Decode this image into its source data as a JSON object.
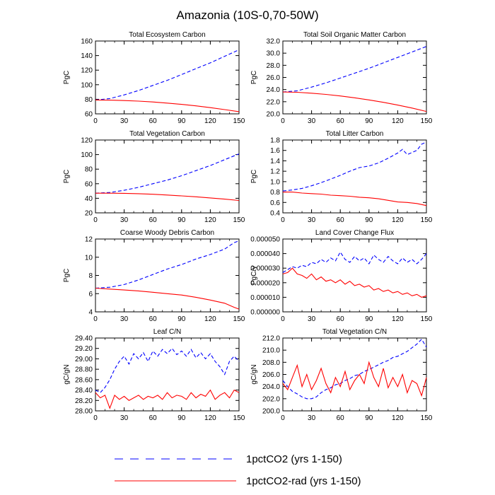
{
  "figure": {
    "title": "Amazonia (10S-0,70-50W)"
  },
  "legend": [
    {
      "name": "1pctCO2 (yrs 1-150)",
      "color": "#0000ff",
      "dash": "dashed"
    },
    {
      "name": "1pctCO2-rad (yrs 1-150)",
      "color": "#ff0000",
      "dash": "solid"
    }
  ],
  "chart_data": [
    {
      "type": "line",
      "title": "Total Ecosystem Carbon",
      "ylabel": "PgC",
      "xlim": [
        0,
        150
      ],
      "ylim": [
        60,
        160
      ],
      "xticks": [
        0,
        30,
        60,
        90,
        120,
        150
      ],
      "xtick_labels": [
        "0",
        "30",
        "60",
        "90",
        "120",
        "150"
      ],
      "yticks": [
        60,
        80,
        100,
        120,
        140,
        160
      ],
      "ytick_labels": [
        "60",
        "80",
        "100",
        "120",
        "140",
        "160"
      ],
      "series": [
        {
          "name": "1pctCO2 (yrs 1-150)",
          "color": "#0000ff",
          "dash": "dashed",
          "x": [
            0,
            15,
            30,
            45,
            60,
            75,
            90,
            105,
            120,
            135,
            150
          ],
          "y": [
            79,
            81,
            86,
            92,
            99,
            106,
            114,
            122,
            130,
            139,
            148
          ]
        },
        {
          "name": "1pctCO2-rad (yrs 1-150)",
          "color": "#ff0000",
          "dash": "solid",
          "x": [
            0,
            15,
            30,
            45,
            60,
            75,
            90,
            105,
            120,
            135,
            150
          ],
          "y": [
            79,
            78.8,
            78.3,
            77.5,
            76.3,
            74.8,
            73,
            71,
            68.5,
            65.8,
            63
          ]
        }
      ]
    },
    {
      "type": "line",
      "title": "Total Soil Organic Matter Carbon",
      "ylabel": "PgC",
      "xlim": [
        0,
        150
      ],
      "ylim": [
        20,
        32
      ],
      "xticks": [
        0,
        30,
        60,
        90,
        120,
        150
      ],
      "xtick_labels": [
        "0",
        "30",
        "60",
        "90",
        "120",
        "150"
      ],
      "yticks": [
        20,
        22,
        24,
        26,
        28,
        30,
        32
      ],
      "ytick_labels": [
        "20.0",
        "22.0",
        "24.0",
        "26.0",
        "28.0",
        "30.0",
        "32.0"
      ],
      "series": [
        {
          "name": "1pctCO2 (yrs 1-150)",
          "color": "#0000ff",
          "dash": "dashed",
          "x": [
            0,
            15,
            30,
            45,
            60,
            75,
            90,
            105,
            120,
            135,
            150
          ],
          "y": [
            23.6,
            23.8,
            24.4,
            25.1,
            25.9,
            26.7,
            27.5,
            28.4,
            29.3,
            30.2,
            31.1
          ]
        },
        {
          "name": "1pctCO2-rad (yrs 1-150)",
          "color": "#ff0000",
          "dash": "solid",
          "x": [
            0,
            15,
            30,
            45,
            60,
            75,
            90,
            105,
            120,
            135,
            150
          ],
          "y": [
            23.6,
            23.55,
            23.4,
            23.2,
            22.95,
            22.65,
            22.3,
            21.9,
            21.45,
            20.95,
            20.4
          ]
        }
      ]
    },
    {
      "type": "line",
      "title": "Total Vegetation Carbon",
      "ylabel": "PgC",
      "xlim": [
        0,
        150
      ],
      "ylim": [
        20,
        120
      ],
      "xticks": [
        0,
        30,
        60,
        90,
        120,
        150
      ],
      "xtick_labels": [
        "0",
        "30",
        "60",
        "90",
        "120",
        "150"
      ],
      "yticks": [
        20,
        40,
        60,
        80,
        100,
        120
      ],
      "ytick_labels": [
        "20",
        "40",
        "60",
        "80",
        "100",
        "120"
      ],
      "series": [
        {
          "name": "1pctCO2 (yrs 1-150)",
          "color": "#0000ff",
          "dash": "dashed",
          "x": [
            0,
            15,
            30,
            45,
            60,
            75,
            90,
            105,
            120,
            135,
            150
          ],
          "y": [
            47,
            48,
            51,
            55,
            60,
            65,
            71,
            78,
            85,
            93,
            101
          ]
        },
        {
          "name": "1pctCO2-rad (yrs 1-150)",
          "color": "#ff0000",
          "dash": "solid",
          "x": [
            0,
            15,
            30,
            45,
            60,
            75,
            90,
            105,
            120,
            135,
            150
          ],
          "y": [
            47,
            47,
            46.8,
            46.3,
            45.5,
            44.5,
            43.3,
            42,
            40.5,
            38.8,
            37
          ]
        }
      ]
    },
    {
      "type": "line",
      "title": "Total Litter Carbon",
      "ylabel": "PgC",
      "xlim": [
        0,
        150
      ],
      "ylim": [
        0.4,
        1.8
      ],
      "xticks": [
        0,
        30,
        60,
        90,
        120,
        150
      ],
      "xtick_labels": [
        "0",
        "30",
        "60",
        "90",
        "120",
        "150"
      ],
      "yticks": [
        0.4,
        0.6,
        0.8,
        1.0,
        1.2,
        1.4,
        1.6,
        1.8
      ],
      "ytick_labels": [
        "0.4",
        "0.6",
        "0.8",
        "1.0",
        "1.2",
        "1.4",
        "1.6",
        "1.8"
      ],
      "series": [
        {
          "name": "1pctCO2 (yrs 1-150)",
          "color": "#0000ff",
          "dash": "dashed",
          "x": [
            0,
            10,
            20,
            30,
            40,
            50,
            60,
            70,
            80,
            90,
            100,
            110,
            120,
            125,
            130,
            140,
            145,
            150
          ],
          "y": [
            0.82,
            0.84,
            0.87,
            0.92,
            0.98,
            1.05,
            1.12,
            1.2,
            1.27,
            1.3,
            1.36,
            1.45,
            1.55,
            1.62,
            1.52,
            1.6,
            1.72,
            1.76
          ]
        },
        {
          "name": "1pctCO2-rad (yrs 1-150)",
          "color": "#ff0000",
          "dash": "solid",
          "x": [
            0,
            10,
            20,
            30,
            40,
            50,
            60,
            70,
            80,
            90,
            100,
            110,
            120,
            130,
            140,
            150
          ],
          "y": [
            0.8,
            0.8,
            0.78,
            0.77,
            0.76,
            0.74,
            0.73,
            0.72,
            0.7,
            0.69,
            0.67,
            0.64,
            0.61,
            0.6,
            0.58,
            0.54
          ]
        }
      ]
    },
    {
      "type": "line",
      "title": "Coarse Woody Debris Carbon",
      "ylabel": "PgC",
      "xlim": [
        0,
        150
      ],
      "ylim": [
        4,
        12
      ],
      "xticks": [
        0,
        30,
        60,
        90,
        120,
        150
      ],
      "xtick_labels": [
        "0",
        "30",
        "60",
        "90",
        "120",
        "150"
      ],
      "yticks": [
        4,
        6,
        8,
        10,
        12
      ],
      "ytick_labels": [
        "4",
        "6",
        "8",
        "10",
        "12"
      ],
      "series": [
        {
          "name": "1pctCO2 (yrs 1-150)",
          "color": "#0000ff",
          "dash": "dashed",
          "x": [
            0,
            15,
            30,
            45,
            60,
            75,
            90,
            105,
            120,
            135,
            145,
            150
          ],
          "y": [
            6.6,
            6.7,
            7.0,
            7.5,
            8.1,
            8.7,
            9.2,
            9.8,
            10.3,
            10.9,
            11.6,
            11.8
          ]
        },
        {
          "name": "1pctCO2-rad (yrs 1-150)",
          "color": "#ff0000",
          "dash": "solid",
          "x": [
            0,
            15,
            30,
            45,
            60,
            75,
            90,
            105,
            120,
            135,
            145,
            150
          ],
          "y": [
            6.6,
            6.5,
            6.4,
            6.3,
            6.15,
            6.0,
            5.85,
            5.6,
            5.3,
            4.95,
            4.5,
            4.3
          ]
        }
      ]
    },
    {
      "type": "line",
      "title": "Land Cover Change Flux",
      "ylabel": "PgC/y",
      "xlim": [
        0,
        150
      ],
      "ylim": [
        0,
        5e-05
      ],
      "xticks": [
        0,
        30,
        60,
        90,
        120,
        150
      ],
      "xtick_labels": [
        "0",
        "30",
        "60",
        "90",
        "120",
        "150"
      ],
      "yticks": [
        0,
        1e-05,
        2e-05,
        3e-05,
        4e-05,
        5e-05
      ],
      "ytick_labels": [
        "0.000000",
        "0.000010",
        "0.000020",
        "0.000030",
        "0.000040",
        "0.000050"
      ],
      "series": [
        {
          "name": "1pctCO2 (yrs 1-150)",
          "color": "#0000ff",
          "dash": "dashed",
          "x": [
            0,
            5,
            10,
            15,
            20,
            25,
            30,
            35,
            40,
            45,
            50,
            55,
            60,
            65,
            70,
            75,
            80,
            85,
            90,
            95,
            100,
            105,
            110,
            115,
            120,
            125,
            130,
            135,
            140,
            145,
            150
          ],
          "y": [
            2.7e-05,
            2.9e-05,
            3.1e-05,
            3e-05,
            3.2e-05,
            3.1e-05,
            3.4e-05,
            3.3e-05,
            3.6e-05,
            3.4e-05,
            3.7e-05,
            3.5e-05,
            4.1e-05,
            3.6e-05,
            3.4e-05,
            3.8e-05,
            3.5e-05,
            3.7e-05,
            3.3e-05,
            3.9e-05,
            3.6e-05,
            3.4e-05,
            3.8e-05,
            3.5e-05,
            3.3e-05,
            3.7e-05,
            3.4e-05,
            3.6e-05,
            3.3e-05,
            3.6e-05,
            4e-05
          ]
        },
        {
          "name": "1pctCO2-rad (yrs 1-150)",
          "color": "#ff0000",
          "dash": "solid",
          "x": [
            0,
            5,
            10,
            15,
            20,
            25,
            30,
            35,
            40,
            45,
            50,
            55,
            60,
            65,
            70,
            75,
            80,
            85,
            90,
            95,
            100,
            105,
            110,
            115,
            120,
            125,
            130,
            135,
            140,
            145,
            150
          ],
          "y": [
            2.6e-05,
            2.7e-05,
            3e-05,
            2.6e-05,
            2.5e-05,
            2.3e-05,
            2.6e-05,
            2.2e-05,
            2.4e-05,
            2.1e-05,
            2.2e-05,
            2e-05,
            2.2e-05,
            1.9e-05,
            2.1e-05,
            1.8e-05,
            1.9e-05,
            1.7e-05,
            1.8e-05,
            1.5e-05,
            1.6e-05,
            1.4e-05,
            1.5e-05,
            1.3e-05,
            1.4e-05,
            1.2e-05,
            1.3e-05,
            1.1e-05,
            1.2e-05,
            1e-05,
            1.1e-05
          ]
        }
      ]
    },
    {
      "type": "line",
      "title": "Leaf C/N",
      "ylabel": "gC/gN",
      "xlim": [
        0,
        150
      ],
      "ylim": [
        28.0,
        29.4
      ],
      "xticks": [
        0,
        30,
        60,
        90,
        120,
        150
      ],
      "xtick_labels": [
        "0",
        "30",
        "60",
        "90",
        "120",
        "150"
      ],
      "yticks": [
        28.0,
        28.2,
        28.4,
        28.6,
        28.8,
        29.0,
        29.2,
        29.4
      ],
      "ytick_labels": [
        "28.00",
        "28.20",
        "28.40",
        "28.60",
        "28.80",
        "29.00",
        "29.20",
        "29.40"
      ],
      "series": [
        {
          "name": "1pctCO2 (yrs 1-150)",
          "color": "#0000ff",
          "dash": "dashed",
          "x": [
            0,
            5,
            10,
            15,
            20,
            25,
            30,
            35,
            40,
            45,
            50,
            55,
            60,
            65,
            70,
            75,
            80,
            85,
            90,
            95,
            100,
            105,
            110,
            115,
            120,
            125,
            130,
            135,
            140,
            145,
            150
          ],
          "y": [
            28.4,
            28.35,
            28.45,
            28.6,
            28.8,
            28.95,
            29.05,
            28.9,
            29.1,
            29.0,
            29.12,
            28.95,
            29.15,
            29.05,
            29.18,
            29.1,
            29.2,
            29.08,
            29.15,
            29.05,
            29.18,
            29.02,
            29.12,
            29.0,
            29.1,
            28.95,
            28.85,
            28.7,
            28.95,
            29.05,
            28.95
          ]
        },
        {
          "name": "1pctCO2-rad (yrs 1-150)",
          "color": "#ff0000",
          "dash": "solid",
          "x": [
            0,
            5,
            10,
            15,
            20,
            25,
            30,
            35,
            40,
            45,
            50,
            55,
            60,
            65,
            70,
            75,
            80,
            85,
            90,
            95,
            100,
            105,
            110,
            115,
            120,
            125,
            130,
            135,
            140,
            145,
            150
          ],
          "y": [
            28.35,
            28.25,
            28.3,
            28.05,
            28.3,
            28.22,
            28.28,
            28.2,
            28.25,
            28.3,
            28.22,
            28.28,
            28.25,
            28.3,
            28.22,
            28.35,
            28.25,
            28.3,
            28.28,
            28.22,
            28.35,
            28.25,
            28.32,
            28.28,
            28.4,
            28.22,
            28.3,
            28.35,
            28.25,
            28.4,
            28.35
          ]
        }
      ]
    },
    {
      "type": "line",
      "title": "Total Vegetation C/N",
      "ylabel": "gC/gN",
      "xlim": [
        0,
        150
      ],
      "ylim": [
        200,
        212
      ],
      "xticks": [
        0,
        30,
        60,
        90,
        120,
        150
      ],
      "xtick_labels": [
        "0",
        "30",
        "60",
        "90",
        "120",
        "150"
      ],
      "yticks": [
        200,
        202,
        204,
        206,
        208,
        210,
        212
      ],
      "ytick_labels": [
        "200.0",
        "202.0",
        "204.0",
        "206.0",
        "208.0",
        "210.0",
        "212.0"
      ],
      "series": [
        {
          "name": "1pctCO2 (yrs 1-150)",
          "color": "#0000ff",
          "dash": "dashed",
          "x": [
            0,
            5,
            10,
            15,
            20,
            25,
            30,
            35,
            40,
            45,
            50,
            55,
            60,
            65,
            70,
            75,
            80,
            85,
            90,
            95,
            100,
            105,
            110,
            115,
            120,
            125,
            130,
            135,
            140,
            145,
            150
          ],
          "y": [
            205,
            204,
            203.2,
            202.8,
            202.3,
            202.0,
            202.0,
            202.3,
            203.0,
            203.5,
            203.8,
            204.3,
            204.5,
            205.0,
            205.3,
            205.8,
            206.0,
            206.5,
            206.8,
            207.2,
            207.6,
            208.0,
            208.3,
            208.8,
            209.0,
            209.4,
            209.8,
            210.4,
            211.0,
            211.8,
            210.5
          ]
        },
        {
          "name": "1pctCO2-rad (yrs 1-150)",
          "color": "#ff0000",
          "dash": "solid",
          "x": [
            0,
            5,
            10,
            15,
            20,
            25,
            30,
            35,
            40,
            45,
            50,
            55,
            60,
            65,
            70,
            75,
            80,
            85,
            90,
            95,
            100,
            105,
            110,
            115,
            120,
            125,
            130,
            135,
            140,
            145,
            150
          ],
          "y": [
            204.5,
            203.5,
            205.5,
            207.5,
            204.0,
            206.0,
            203.5,
            205.0,
            207.0,
            204.5,
            203.0,
            205.5,
            204.0,
            206.5,
            203.5,
            205.0,
            206.0,
            204.5,
            208.0,
            205.5,
            204.0,
            207.0,
            203.8,
            205.5,
            204.0,
            206.0,
            203.0,
            205.0,
            204.5,
            202.5,
            205.5
          ]
        }
      ]
    }
  ]
}
